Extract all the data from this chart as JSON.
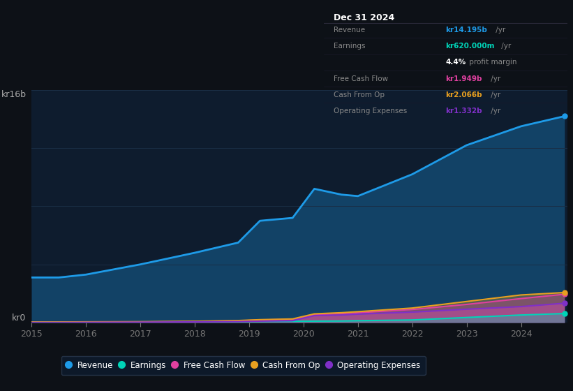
{
  "background_color": "#0d1117",
  "plot_bg_color": "#0e1c2e",
  "grid_color": "#1a2e45",
  "years": [
    2015,
    2015.5,
    2016,
    2017,
    2018,
    2018.8,
    2019.2,
    2019.8,
    2020.2,
    2020.7,
    2021,
    2022,
    2023,
    2024,
    2024.8
  ],
  "revenue": [
    3.1,
    3.1,
    3.3,
    4.0,
    4.8,
    5.5,
    7.0,
    7.2,
    9.2,
    8.8,
    8.7,
    10.2,
    12.2,
    13.5,
    14.195
  ],
  "earnings": [
    0.03,
    0.03,
    0.04,
    0.05,
    0.06,
    0.07,
    0.08,
    0.09,
    0.1,
    0.11,
    0.13,
    0.18,
    0.35,
    0.52,
    0.62
  ],
  "free_cash_flow": [
    0.02,
    0.02,
    0.03,
    0.04,
    0.08,
    0.12,
    0.18,
    0.22,
    0.55,
    0.62,
    0.68,
    0.9,
    1.25,
    1.65,
    1.949
  ],
  "cash_from_op": [
    0.04,
    0.04,
    0.05,
    0.06,
    0.09,
    0.14,
    0.2,
    0.25,
    0.6,
    0.68,
    0.75,
    1.0,
    1.45,
    1.9,
    2.066
  ],
  "operating_expenses": [
    0.01,
    0.01,
    0.02,
    0.03,
    0.05,
    0.07,
    0.1,
    0.13,
    0.48,
    0.52,
    0.58,
    0.72,
    0.92,
    1.1,
    1.332
  ],
  "revenue_color": "#1e9be8",
  "earnings_color": "#00d4b8",
  "free_cash_flow_color": "#e040a0",
  "cash_from_op_color": "#e8a020",
  "operating_expenses_color": "#8030c8",
  "ylim": [
    0,
    16
  ],
  "ytick_positions": [
    0,
    16
  ],
  "ytick_labels": [
    "kr0",
    "kr16b"
  ],
  "xlabel_ticks": [
    2015,
    2016,
    2017,
    2018,
    2019,
    2020,
    2021,
    2022,
    2023,
    2024
  ],
  "info_box": {
    "date": "Dec 31 2024",
    "rows": [
      {
        "label": "Revenue",
        "value": "kr14.195b",
        "suffix": " /yr",
        "value_color": "#1e9be8",
        "label_color": "#888888"
      },
      {
        "label": "Earnings",
        "value": "kr620.000m",
        "suffix": " /yr",
        "value_color": "#00d4b8",
        "label_color": "#888888"
      },
      {
        "label": "",
        "value": "4.4%",
        "suffix": " profit margin",
        "value_color": "#ffffff",
        "label_color": "#888888"
      },
      {
        "label": "Free Cash Flow",
        "value": "kr1.949b",
        "suffix": " /yr",
        "value_color": "#e040a0",
        "label_color": "#888888"
      },
      {
        "label": "Cash From Op",
        "value": "kr2.066b",
        "suffix": " /yr",
        "value_color": "#e8a020",
        "label_color": "#888888"
      },
      {
        "label": "Operating Expenses",
        "value": "kr1.332b",
        "suffix": " /yr",
        "value_color": "#8030c8",
        "label_color": "#888888"
      }
    ],
    "bg_color": "#050508",
    "border_color": "#2a2a3a",
    "header_color": "#ffffff"
  },
  "legend_entries": [
    "Revenue",
    "Earnings",
    "Free Cash Flow",
    "Cash From Op",
    "Operating Expenses"
  ],
  "legend_colors": [
    "#1e9be8",
    "#00d4b8",
    "#e040a0",
    "#e8a020",
    "#8030c8"
  ]
}
